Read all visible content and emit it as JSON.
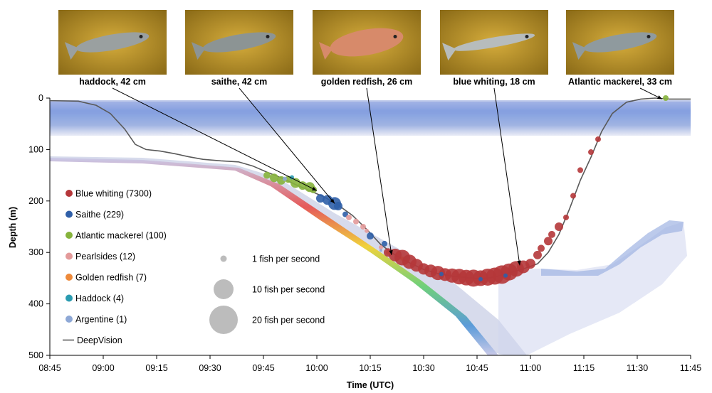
{
  "chart_data": {
    "type": "scatter",
    "title": "",
    "xlabel": "Time (UTC)",
    "ylabel": "Depth (m)",
    "x_ticks": [
      "08:45",
      "09:00",
      "09:15",
      "09:30",
      "09:45",
      "10:00",
      "10:15",
      "10:30",
      "10:45",
      "11:00",
      "11:15",
      "11:30",
      "11:45"
    ],
    "y_ticks": [
      0,
      100,
      200,
      300,
      400,
      500
    ],
    "xlim": [
      "08:45",
      "11:45"
    ],
    "ylim": [
      0,
      500
    ],
    "y_inverted": true,
    "grid": false,
    "legend_position": "left-middle",
    "series": [
      {
        "name": "Blue whiting (7300)",
        "color": "#b5373a"
      },
      {
        "name": "Saithe (229)",
        "color": "#2f5fa8"
      },
      {
        "name": "Atlantic mackerel (100)",
        "color": "#86b33c"
      },
      {
        "name": "Pearlsides (12)",
        "color": "#e39a9a"
      },
      {
        "name": "Golden redfish (7)",
        "color": "#ee8a3a"
      },
      {
        "name": "Haddock (4)",
        "color": "#2a9bb0"
      },
      {
        "name": "Argentine (1)",
        "color": "#8ea8d6"
      }
    ],
    "line_series": {
      "name": "DeepVision",
      "color": "#595959",
      "points": [
        [
          "08:45",
          5
        ],
        [
          "08:53",
          6
        ],
        [
          "08:58",
          14
        ],
        [
          "09:02",
          30
        ],
        [
          "09:06",
          60
        ],
        [
          "09:09",
          90
        ],
        [
          "09:12",
          100
        ],
        [
          "09:16",
          103
        ],
        [
          "09:20",
          108
        ],
        [
          "09:24",
          114
        ],
        [
          "09:28",
          119
        ],
        [
          "09:33",
          122
        ],
        [
          "09:38",
          124
        ],
        [
          "09:42",
          132
        ],
        [
          "09:46",
          144
        ],
        [
          "09:50",
          155
        ],
        [
          "09:54",
          168
        ],
        [
          "09:58",
          180
        ],
        [
          "10:02",
          192
        ],
        [
          "10:06",
          208
        ],
        [
          "10:10",
          228
        ],
        [
          "10:14",
          255
        ],
        [
          "10:18",
          285
        ],
        [
          "10:22",
          305
        ],
        [
          "10:26",
          320
        ],
        [
          "10:30",
          333
        ],
        [
          "10:34",
          341
        ],
        [
          "10:38",
          346
        ],
        [
          "10:42",
          349
        ],
        [
          "10:46",
          351
        ],
        [
          "10:50",
          348
        ],
        [
          "10:54",
          340
        ],
        [
          "10:58",
          332
        ],
        [
          "11:02",
          322
        ],
        [
          "11:05",
          300
        ],
        [
          "11:08",
          265
        ],
        [
          "11:11",
          215
        ],
        [
          "11:14",
          160
        ],
        [
          "11:17",
          115
        ],
        [
          "11:20",
          65
        ],
        [
          "11:23",
          30
        ],
        [
          "11:27",
          8
        ],
        [
          "11:31",
          2
        ],
        [
          "11:35",
          0
        ],
        [
          "11:39",
          2
        ],
        [
          "11:45",
          2
        ]
      ]
    },
    "size_legend": [
      {
        "label": "1 fish per second",
        "value": 1
      },
      {
        "label": "10 fish per second",
        "value": 10
      },
      {
        "label": "20 fish per second",
        "value": 20
      }
    ],
    "points": [
      {
        "species": 2,
        "t": "09:46",
        "d": 150,
        "r": 5
      },
      {
        "species": 2,
        "t": "09:48",
        "d": 155,
        "r": 6
      },
      {
        "species": 2,
        "t": "09:50",
        "d": 160,
        "r": 6
      },
      {
        "species": 2,
        "t": "09:52",
        "d": 158,
        "r": 5
      },
      {
        "species": 2,
        "t": "09:54",
        "d": 165,
        "r": 7
      },
      {
        "species": 5,
        "t": "09:53",
        "d": 154,
        "r": 3
      },
      {
        "species": 2,
        "t": "09:56",
        "d": 170,
        "r": 6
      },
      {
        "species": 2,
        "t": "09:58",
        "d": 173,
        "r": 7
      },
      {
        "species": 2,
        "t": "09:59",
        "d": 178,
        "r": 5
      },
      {
        "species": 6,
        "t": "09:51",
        "d": 157,
        "r": 3
      },
      {
        "species": 1,
        "t": "10:01",
        "d": 195,
        "r": 6
      },
      {
        "species": 1,
        "t": "10:03",
        "d": 198,
        "r": 7
      },
      {
        "species": 1,
        "t": "10:05",
        "d": 205,
        "r": 9
      },
      {
        "species": 1,
        "t": "10:06",
        "d": 210,
        "r": 6
      },
      {
        "species": 1,
        "t": "10:08",
        "d": 226,
        "r": 4
      },
      {
        "species": 1,
        "t": "10:15",
        "d": 268,
        "r": 5
      },
      {
        "species": 1,
        "t": "10:19",
        "d": 283,
        "r": 4
      },
      {
        "species": 3,
        "t": "10:09",
        "d": 232,
        "r": 4
      },
      {
        "species": 3,
        "t": "10:11",
        "d": 240,
        "r": 4
      },
      {
        "species": 3,
        "t": "10:13",
        "d": 250,
        "r": 4
      },
      {
        "species": 3,
        "t": "10:14",
        "d": 258,
        "r": 3
      },
      {
        "species": 3,
        "t": "10:18",
        "d": 290,
        "r": 3
      },
      {
        "species": 4,
        "t": "10:20",
        "d": 300,
        "r": 3
      },
      {
        "species": 4,
        "t": "10:24",
        "d": 312,
        "r": 3
      },
      {
        "species": 4,
        "t": "10:40",
        "d": 345,
        "r": 3
      },
      {
        "species": 6,
        "t": "10:18",
        "d": 296,
        "r": 2
      },
      {
        "species": 0,
        "t": "10:20",
        "d": 300,
        "r": 6
      },
      {
        "species": 0,
        "t": "10:22",
        "d": 305,
        "r": 9
      },
      {
        "species": 0,
        "t": "10:24",
        "d": 310,
        "r": 11
      },
      {
        "species": 0,
        "t": "10:26",
        "d": 318,
        "r": 10
      },
      {
        "species": 0,
        "t": "10:28",
        "d": 325,
        "r": 9
      },
      {
        "species": 0,
        "t": "10:30",
        "d": 332,
        "r": 8
      },
      {
        "species": 0,
        "t": "10:32",
        "d": 336,
        "r": 9
      },
      {
        "species": 0,
        "t": "10:34",
        "d": 340,
        "r": 10
      },
      {
        "species": 0,
        "t": "10:36",
        "d": 343,
        "r": 9
      },
      {
        "species": 0,
        "t": "10:38",
        "d": 345,
        "r": 10
      },
      {
        "species": 0,
        "t": "10:40",
        "d": 347,
        "r": 11
      },
      {
        "species": 0,
        "t": "10:42",
        "d": 349,
        "r": 11
      },
      {
        "species": 0,
        "t": "10:44",
        "d": 350,
        "r": 12
      },
      {
        "species": 0,
        "t": "10:46",
        "d": 350,
        "r": 11
      },
      {
        "species": 0,
        "t": "10:48",
        "d": 348,
        "r": 12
      },
      {
        "species": 0,
        "t": "10:50",
        "d": 346,
        "r": 12
      },
      {
        "species": 0,
        "t": "10:52",
        "d": 343,
        "r": 13
      },
      {
        "species": 0,
        "t": "10:54",
        "d": 338,
        "r": 12
      },
      {
        "species": 0,
        "t": "10:56",
        "d": 332,
        "r": 11
      },
      {
        "species": 0,
        "t": "10:58",
        "d": 328,
        "r": 9
      },
      {
        "species": 0,
        "t": "11:00",
        "d": 322,
        "r": 7
      },
      {
        "species": 0,
        "t": "11:02",
        "d": 305,
        "r": 6
      },
      {
        "species": 0,
        "t": "11:03",
        "d": 292,
        "r": 5
      },
      {
        "species": 0,
        "t": "11:05",
        "d": 278,
        "r": 6
      },
      {
        "species": 0,
        "t": "11:06",
        "d": 265,
        "r": 5
      },
      {
        "species": 0,
        "t": "11:08",
        "d": 250,
        "r": 6
      },
      {
        "species": 0,
        "t": "11:10",
        "d": 232,
        "r": 4
      },
      {
        "species": 0,
        "t": "11:12",
        "d": 190,
        "r": 4
      },
      {
        "species": 0,
        "t": "11:14",
        "d": 140,
        "r": 4
      },
      {
        "species": 0,
        "t": "11:17",
        "d": 105,
        "r": 4
      },
      {
        "species": 0,
        "t": "11:19",
        "d": 80,
        "r": 4
      },
      {
        "species": 1,
        "t": "10:35",
        "d": 342,
        "r": 3
      },
      {
        "species": 1,
        "t": "10:46",
        "d": 352,
        "r": 3
      },
      {
        "species": 1,
        "t": "10:53",
        "d": 345,
        "r": 3
      },
      {
        "species": 2,
        "t": "11:38",
        "d": 0,
        "r": 4
      }
    ]
  },
  "photos": [
    {
      "label": "haddock, 42 cm",
      "icon": "haddock-photo-icon"
    },
    {
      "label": "saithe, 42 cm",
      "icon": "saithe-photo-icon"
    },
    {
      "label": "golden redfish, 26 cm",
      "icon": "golden-redfish-photo-icon"
    },
    {
      "label": "blue whiting, 18 cm",
      "icon": "blue-whiting-photo-icon"
    },
    {
      "label": "Atlantic mackerel, 33 cm",
      "icon": "atlantic-mackerel-photo-icon"
    }
  ]
}
